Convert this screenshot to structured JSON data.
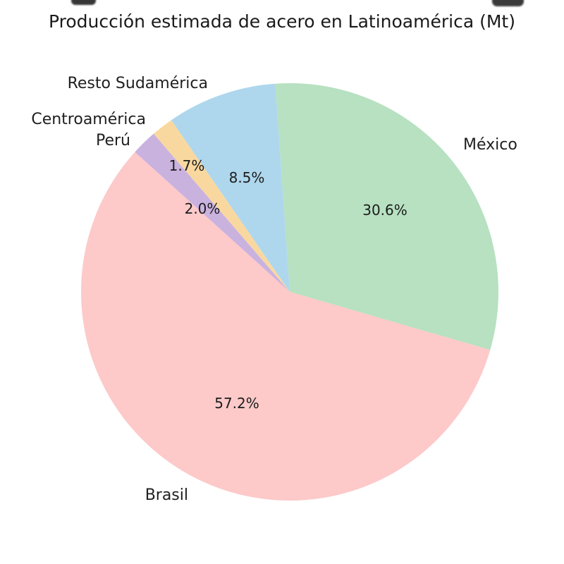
{
  "title": "Producción estimada de acero en Latinoamérica (Mt)",
  "chart_data": {
    "type": "pie",
    "title": "Producción estimada de acero en Latinoamérica (Mt)",
    "start_angle_deg": 94,
    "direction": "clockwise",
    "legend": "none",
    "background": "#ffffff",
    "text_color": "#1a1a1a",
    "slices": [
      {
        "label": "México",
        "value_pct": 30.6,
        "pct_label": "30.6%",
        "color": "#b7e1c1"
      },
      {
        "label": "Brasil",
        "value_pct": 57.2,
        "pct_label": "57.2%",
        "color": "#fdc9c9"
      },
      {
        "label": "Perú",
        "value_pct": 2.0,
        "pct_label": "2.0%",
        "color": "#cab2df"
      },
      {
        "label": "Centroamérica",
        "value_pct": 1.7,
        "pct_label": "1.7%",
        "color": "#f9d8a0"
      },
      {
        "label": "Resto Sudamérica",
        "value_pct": 8.5,
        "pct_label": "8.5%",
        "color": "#aed7ed"
      }
    ]
  }
}
